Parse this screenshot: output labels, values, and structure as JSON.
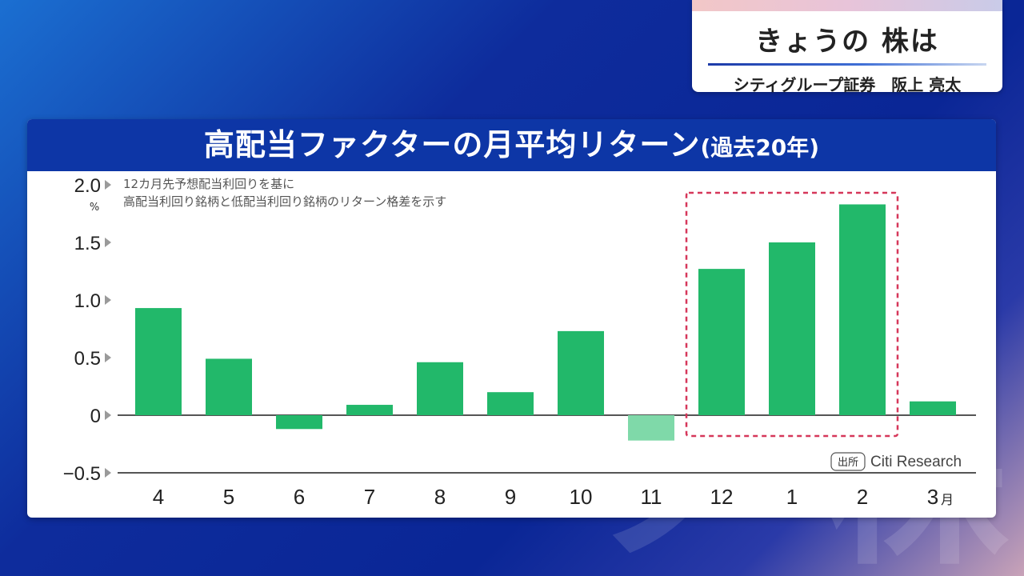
{
  "badge": {
    "title": "きょうの 株は",
    "subtitle": "シティグループ証券　阪上 亮太"
  },
  "chart_data": {
    "type": "bar",
    "title": "高配当ファクターの月平均リターン",
    "title_suffix": "(過去20年)",
    "note": [
      "12カ月先予想配当利回りを基に",
      "高配当利回り銘柄と低配当利回り銘柄のリターン格差を示す"
    ],
    "ylabel": "%",
    "xlabel_suffix": "月",
    "ylim": [
      -0.5,
      2.0
    ],
    "yticks": [
      "2.0",
      "1.5",
      "1.0",
      "0.5",
      "0",
      "−0.5"
    ],
    "categories": [
      "4",
      "5",
      "6",
      "7",
      "8",
      "9",
      "10",
      "11",
      "12",
      "1",
      "2",
      "3"
    ],
    "values": [
      0.93,
      0.49,
      -0.12,
      0.09,
      0.46,
      0.2,
      0.73,
      -0.22,
      1.27,
      1.5,
      1.83,
      0.12
    ],
    "bar_color": "#22b86a",
    "faded_bar_color": "#7fd9a9",
    "highlight": {
      "categories": [
        "12",
        "1",
        "2"
      ],
      "color": "#d6375a"
    },
    "source": {
      "label": "出所",
      "text": "Citi Research"
    }
  },
  "colors": {
    "header_bg": "#0d36a6",
    "axis": "#555555"
  }
}
